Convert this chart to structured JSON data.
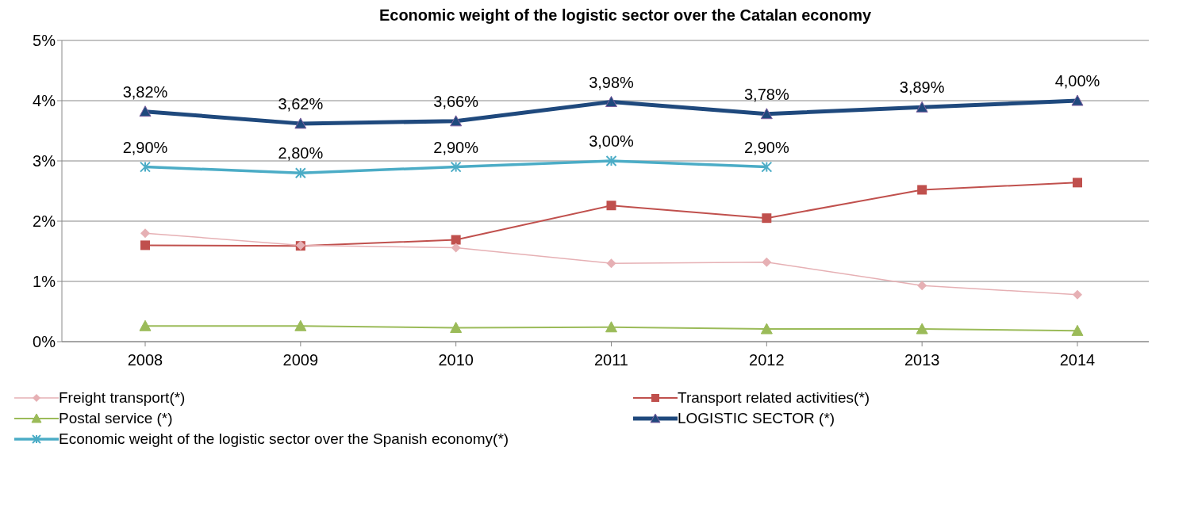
{
  "chart_data": {
    "type": "line",
    "title": "Economic weight of the logistic sector over the Catalan economy",
    "categories": [
      "2008",
      "2009",
      "2010",
      "2011",
      "2012",
      "2013",
      "2014"
    ],
    "series": [
      {
        "name": "Freight transport(*)",
        "color": "#e6b0b4",
        "marker": "diamond",
        "values": [
          1.8,
          1.6,
          1.56,
          1.3,
          1.32,
          0.93,
          0.78
        ]
      },
      {
        "name": "Transport related activities(*)",
        "color": "#c0504d",
        "marker": "square",
        "values": [
          1.6,
          1.59,
          1.69,
          2.26,
          2.05,
          2.52,
          2.64
        ]
      },
      {
        "name": "Postal service (*)",
        "color": "#9bbb59",
        "marker": "triangle",
        "values": [
          0.26,
          0.26,
          0.23,
          0.24,
          0.21,
          0.21,
          0.18
        ]
      },
      {
        "name": "LOGISTIC SECTOR (*)",
        "color": "#1f497d",
        "marker": "triangle",
        "values": [
          3.82,
          3.62,
          3.66,
          3.98,
          3.78,
          3.89,
          4.0
        ],
        "value_labels": [
          "3,82%",
          "3,62%",
          "3,66%",
          "3,98%",
          "3,78%",
          "3,89%",
          "4,00%"
        ]
      },
      {
        "name": "Economic weight of the logistic sector over the Spanish economy(*)",
        "color": "#4bacc6",
        "marker": "cross",
        "values": [
          2.9,
          2.8,
          2.9,
          3.0,
          2.9,
          null,
          null
        ],
        "value_labels": [
          "2,90%",
          "2,80%",
          "2,90%",
          "3,00%",
          "2,90%",
          null,
          null
        ]
      }
    ],
    "ylim": [
      0,
      5
    ],
    "yticks": [
      {
        "value": 0,
        "label": "0%"
      },
      {
        "value": 1,
        "label": "1%"
      },
      {
        "value": 2,
        "label": "2%"
      },
      {
        "value": 3,
        "label": "3%"
      },
      {
        "value": 4,
        "label": "4%"
      },
      {
        "value": 5,
        "label": "5%"
      }
    ],
    "grid": "y",
    "legend": "bottom"
  }
}
